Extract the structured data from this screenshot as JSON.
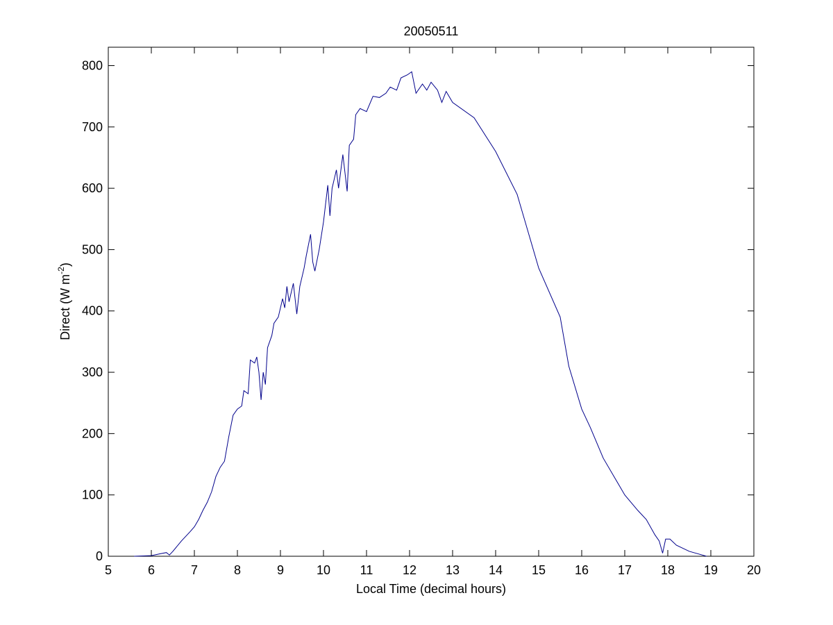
{
  "chart_data": {
    "type": "line",
    "title": "20050511",
    "xlabel": "Local Time (decimal hours)",
    "ylabel": [
      "Direct (W m",
      "-2",
      ")"
    ],
    "xlim": [
      5,
      20
    ],
    "xticks": [
      5,
      6,
      7,
      8,
      9,
      10,
      11,
      12,
      13,
      14,
      15,
      16,
      17,
      18,
      19,
      20
    ],
    "ylim": [
      0,
      830
    ],
    "yticks": [
      0,
      100,
      200,
      300,
      400,
      500,
      600,
      700,
      800
    ],
    "grid": false,
    "series": [
      {
        "color": "#00008b",
        "x": [
          5.6,
          6.0,
          6.2,
          6.35,
          6.42,
          6.5,
          6.7,
          6.9,
          7.0,
          7.1,
          7.2,
          7.3,
          7.4,
          7.5,
          7.6,
          7.7,
          7.8,
          7.9,
          8.0,
          8.1,
          8.15,
          8.25,
          8.3,
          8.4,
          8.45,
          8.5,
          8.55,
          8.6,
          8.65,
          8.7,
          8.8,
          8.85,
          8.95,
          9.05,
          9.1,
          9.15,
          9.2,
          9.3,
          9.38,
          9.45,
          9.55,
          9.6,
          9.7,
          9.75,
          9.8,
          9.9,
          10.0,
          10.1,
          10.15,
          10.2,
          10.3,
          10.35,
          10.45,
          10.55,
          10.6,
          10.7,
          10.75,
          10.85,
          11.0,
          11.15,
          11.3,
          11.45,
          11.55,
          11.7,
          11.8,
          11.95,
          12.05,
          12.15,
          12.3,
          12.4,
          12.5,
          12.65,
          12.75,
          12.85,
          13.0,
          13.5,
          14.0,
          14.5,
          15.0,
          15.5,
          15.7,
          16.0,
          16.2,
          16.5,
          17.0,
          17.3,
          17.5,
          17.7,
          17.8,
          17.88,
          17.95,
          18.05,
          18.2,
          18.5,
          18.9
        ],
        "values": [
          0,
          1,
          4,
          6,
          2,
          8,
          25,
          40,
          48,
          60,
          75,
          88,
          105,
          130,
          145,
          155,
          195,
          230,
          240,
          245,
          270,
          265,
          320,
          315,
          325,
          300,
          255,
          300,
          280,
          340,
          360,
          380,
          390,
          420,
          405,
          440,
          415,
          445,
          395,
          440,
          470,
          490,
          525,
          480,
          465,
          500,
          545,
          605,
          555,
          600,
          630,
          600,
          655,
          595,
          670,
          680,
          720,
          730,
          725,
          750,
          748,
          755,
          765,
          760,
          780,
          785,
          790,
          755,
          770,
          760,
          773,
          760,
          740,
          758,
          740,
          715,
          660,
          590,
          470,
          390,
          310,
          240,
          210,
          160,
          100,
          75,
          60,
          35,
          25,
          5,
          28,
          28,
          18,
          8,
          0
        ]
      }
    ]
  }
}
